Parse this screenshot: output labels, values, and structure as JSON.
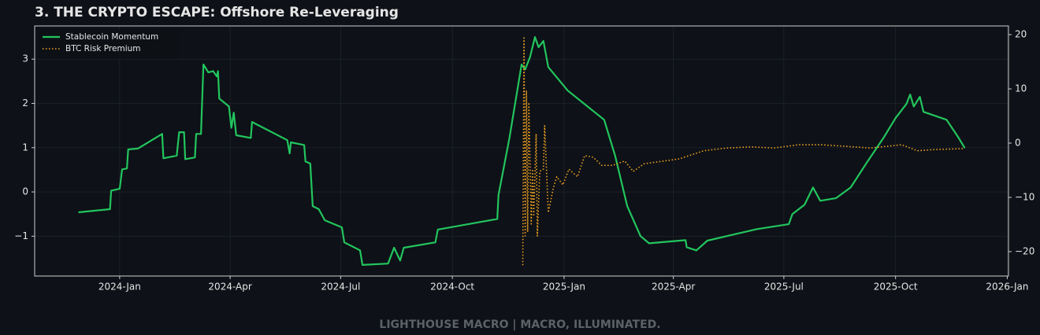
{
  "chart_data": {
    "type": "line",
    "title": "3. THE CRYPTO ESCAPE: Offshore Re-Leveraging",
    "footer": "LIGHTHOUSE MACRO | MACRO, ILLUMINATED.",
    "xlim": [
      "2023-10-23",
      "2026-01-02"
    ],
    "xticks": [
      {
        "value": "2024-01-01",
        "label": "2024-Jan"
      },
      {
        "value": "2024-04-01",
        "label": "2024-Apr"
      },
      {
        "value": "2024-07-01",
        "label": "2024-Jul"
      },
      {
        "value": "2024-10-01",
        "label": "2024-Oct"
      },
      {
        "value": "2025-01-01",
        "label": "2025-Jan"
      },
      {
        "value": "2025-04-01",
        "label": "2025-Apr"
      },
      {
        "value": "2025-07-01",
        "label": "2025-Jul"
      },
      {
        "value": "2025-10-01",
        "label": "2025-Oct"
      },
      {
        "value": "2026-01-01",
        "label": "2026-Jan"
      }
    ],
    "ylim": [
      -1.9,
      3.75
    ],
    "yticks": [
      {
        "value": -1,
        "label": "−1"
      },
      0,
      1,
      2,
      3
    ],
    "y2lim": [
      -24.5,
      21.6
    ],
    "y2ticks": [
      {
        "value": -20,
        "label": "−20"
      },
      {
        "value": -10,
        "label": "−10"
      },
      0,
      10,
      20
    ],
    "grid": true,
    "legend": "upper left",
    "series": [
      {
        "name": "Stablecoin Momentum",
        "color": "#22c55e",
        "style": "solid",
        "x": [
          "2023-11-28",
          "2023-12-24",
          "2023-12-25",
          "2024-01-01",
          "2024-01-03",
          "2024-01-07",
          "2024-01-08",
          "2024-01-16",
          "2024-02-05",
          "2024-02-06",
          "2024-02-17",
          "2024-02-19",
          "2024-02-23",
          "2024-02-24",
          "2024-03-03",
          "2024-03-04",
          "2024-03-08",
          "2024-03-10",
          "2024-03-14",
          "2024-03-18",
          "2024-03-21",
          "2024-03-22",
          "2024-03-23",
          "2024-03-31",
          "2024-04-02",
          "2024-04-04",
          "2024-04-06",
          "2024-04-18",
          "2024-04-19",
          "2024-05-18",
          "2024-05-20",
          "2024-05-21",
          "2024-06-01",
          "2024-06-02",
          "2024-06-06",
          "2024-06-08",
          "2024-06-13",
          "2024-06-18",
          "2024-07-02",
          "2024-07-04",
          "2024-07-17",
          "2024-07-19",
          "2024-08-09",
          "2024-08-14",
          "2024-08-19",
          "2024-08-22",
          "2024-09-17",
          "2024-09-19",
          "2024-11-07",
          "2024-11-08",
          "2024-11-17",
          "2024-11-27",
          "2024-11-30",
          "2024-12-04",
          "2024-12-08",
          "2024-12-11",
          "2024-12-15",
          "2024-12-19",
          "2025-01-04",
          "2025-02-03",
          "2025-02-12",
          "2025-02-22",
          "2025-03-05",
          "2025-03-12",
          "2025-04-11",
          "2025-04-12",
          "2025-04-20",
          "2025-04-29",
          "2025-05-21",
          "2025-06-09",
          "2025-07-05",
          "2025-07-08",
          "2025-07-18",
          "2025-07-25",
          "2025-07-31",
          "2025-08-13",
          "2025-08-25",
          "2025-09-08",
          "2025-09-21",
          "2025-10-01",
          "2025-10-10",
          "2025-10-13",
          "2025-10-16",
          "2025-10-21",
          "2025-10-24",
          "2025-11-12",
          "2025-11-22",
          "2025-11-27"
        ],
        "values": [
          -0.46,
          -0.39,
          0.03,
          0.07,
          0.51,
          0.53,
          0.96,
          0.98,
          1.31,
          0.76,
          0.82,
          1.35,
          1.35,
          0.74,
          0.78,
          1.31,
          1.31,
          2.88,
          2.7,
          2.73,
          2.61,
          2.73,
          2.11,
          1.93,
          1.45,
          1.79,
          1.28,
          1.22,
          1.58,
          1.17,
          0.87,
          1.12,
          1.06,
          0.69,
          0.64,
          -0.32,
          -0.39,
          -0.64,
          -0.8,
          -1.14,
          -1.32,
          -1.65,
          -1.62,
          -1.26,
          -1.55,
          -1.26,
          -1.14,
          -0.85,
          -0.61,
          -0.07,
          1.22,
          2.88,
          2.77,
          3.05,
          3.5,
          3.27,
          3.41,
          2.82,
          2.29,
          1.63,
          0.82,
          -0.32,
          -1.0,
          -1.16,
          -1.09,
          -1.25,
          -1.32,
          -1.1,
          -0.96,
          -0.84,
          -0.73,
          -0.5,
          -0.29,
          0.1,
          -0.2,
          -0.14,
          0.1,
          0.69,
          1.22,
          1.67,
          1.99,
          2.2,
          1.93,
          2.15,
          1.81,
          1.63,
          1.22,
          0.99
        ]
      },
      {
        "name": "BTC Risk Premium",
        "color": "#f5a623",
        "style": "dotted",
        "axis": "y2",
        "x": [
          "2024-11-28",
          "2024-11-29",
          "2024-11-30",
          "2024-12-01",
          "2024-12-02",
          "2024-12-03",
          "2024-12-05",
          "2024-12-06",
          "2024-12-07",
          "2024-12-09",
          "2024-12-10",
          "2024-12-12",
          "2024-12-15",
          "2024-12-16",
          "2024-12-19",
          "2024-12-23",
          "2024-12-26",
          "2024-12-31",
          "2025-01-05",
          "2025-01-12",
          "2025-01-18",
          "2025-01-25",
          "2025-02-01",
          "2025-02-10",
          "2025-02-20",
          "2025-02-27",
          "2025-03-08",
          "2025-03-24",
          "2025-04-06",
          "2025-04-26",
          "2025-05-15",
          "2025-06-04",
          "2025-06-23",
          "2025-07-13",
          "2025-08-01",
          "2025-08-21",
          "2025-09-10",
          "2025-10-06",
          "2025-10-19",
          "2025-11-01",
          "2025-11-27"
        ],
        "values": [
          -22.5,
          19.4,
          -17.1,
          9.7,
          -16.4,
          7.5,
          -14.9,
          -4.8,
          -13.5,
          1.7,
          -17.1,
          -5.2,
          -4.8,
          3.2,
          -12.8,
          -8.4,
          -6.2,
          -7.7,
          -4.8,
          -6.2,
          -2.3,
          -2.6,
          -4.1,
          -4.1,
          -3.3,
          -5.2,
          -3.8,
          -3.3,
          -2.9,
          -1.4,
          -0.9,
          -0.7,
          -0.9,
          -0.3,
          -0.3,
          -0.6,
          -0.9,
          -0.3,
          -1.4,
          -1.2,
          -1.0
        ]
      }
    ]
  }
}
